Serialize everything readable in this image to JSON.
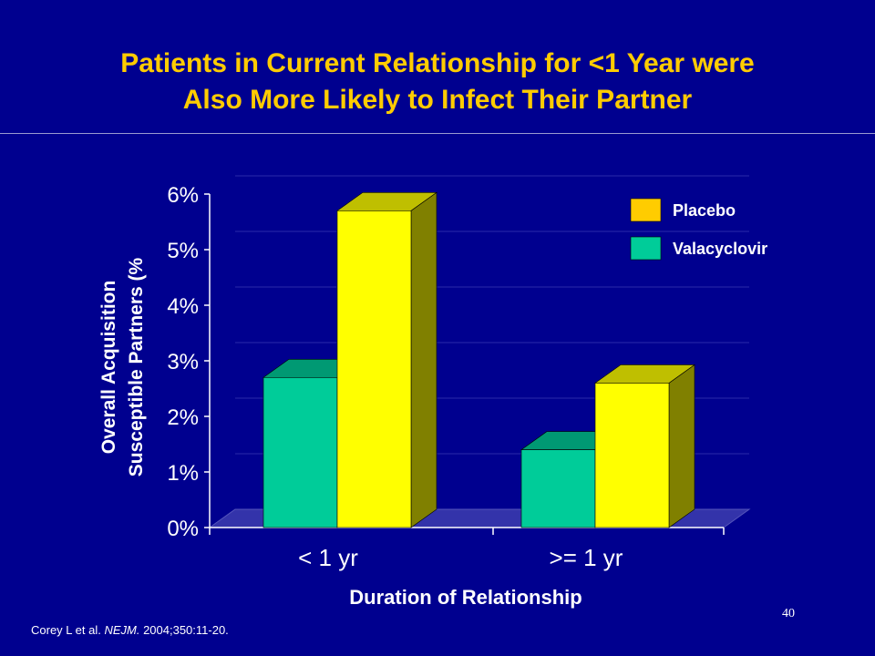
{
  "slide": {
    "title_line1": "Patients in Current Relationship for <1 Year were",
    "title_line2": "Also More Likely to Infect Their Partner",
    "citation_prefix": "Corey L et al. ",
    "citation_journal": "NEJM.",
    "citation_rest": " 2004;350:11-20.",
    "page_number": "40"
  },
  "colors": {
    "placebo": "#ffff00",
    "valacyclovir": "#00cc99",
    "legend_placebo": "#ffcc00",
    "title": "#ffcc00",
    "background": "#00008f"
  },
  "chart_data": {
    "type": "bar",
    "categories": [
      "< 1 yr",
      ">= 1 yr"
    ],
    "series": [
      {
        "name": "Valacyclovir",
        "values": [
          2.7,
          1.4
        ]
      },
      {
        "name": "Placebo",
        "values": [
          5.7,
          2.6
        ]
      }
    ],
    "legend_order": [
      "Placebo",
      "Valacyclovir"
    ],
    "xlabel": "Duration of Relationship",
    "ylabel_line1": "Overall Acquisition",
    "ylabel_line2": "Susceptible Partners (%",
    "yticks": [
      "0%",
      "1%",
      "2%",
      "3%",
      "4%",
      "5%",
      "6%"
    ],
    "ylim": [
      0,
      6
    ],
    "grid": true,
    "legend_position": "top-right",
    "style": "3d"
  }
}
